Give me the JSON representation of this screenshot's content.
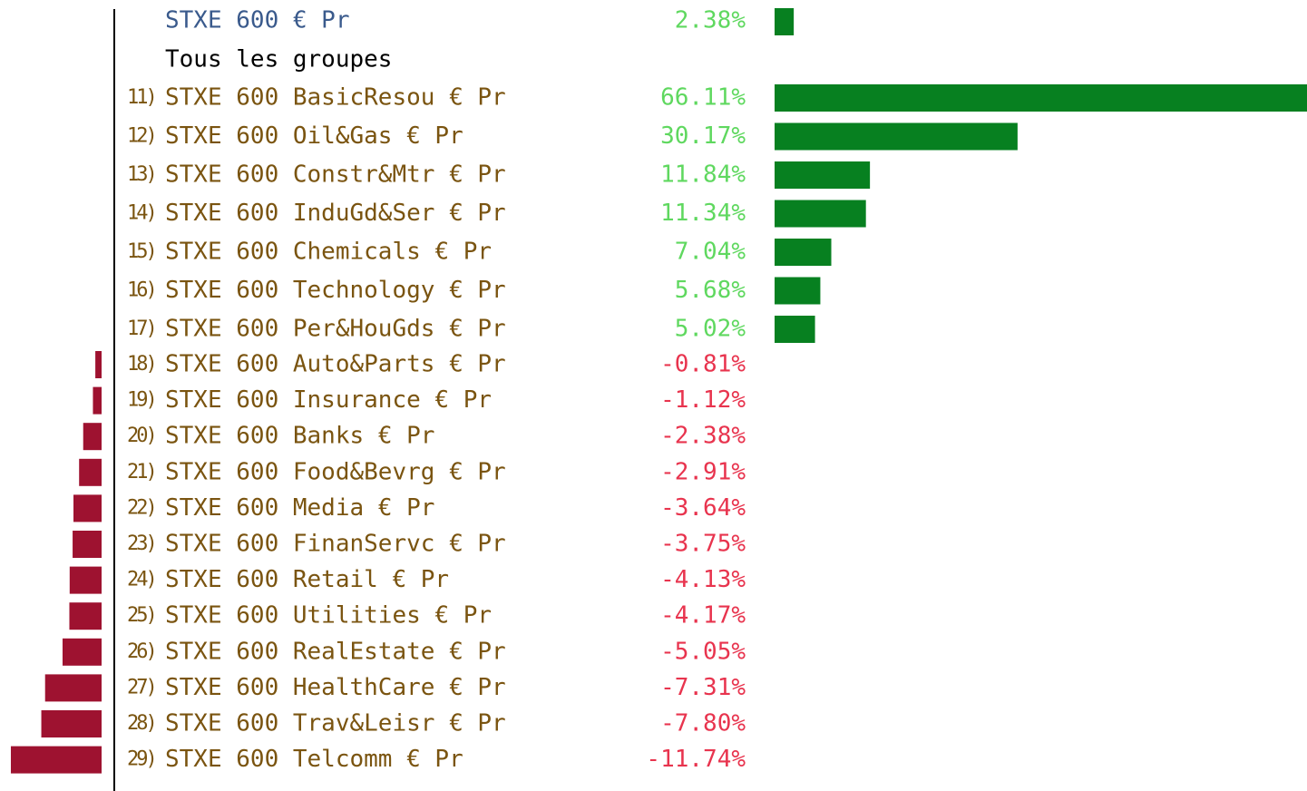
{
  "benchmark": {
    "name": "STXE 600 € Pr",
    "value": 2.38,
    "value_label": "2.38%"
  },
  "group_heading": "Tous les groupes",
  "rows": [
    {
      "number": "11)",
      "name": "STXE 600 BasicResou € Pr",
      "value": 66.11,
      "value_label": "66.11%"
    },
    {
      "number": "12)",
      "name": "STXE 600 Oil&Gas € Pr",
      "value": 30.17,
      "value_label": "30.17%"
    },
    {
      "number": "13)",
      "name": "STXE 600 Constr&Mtr € Pr",
      "value": 11.84,
      "value_label": "11.84%"
    },
    {
      "number": "14)",
      "name": "STXE 600 InduGd&Ser € Pr",
      "value": 11.34,
      "value_label": "11.34%"
    },
    {
      "number": "15)",
      "name": "STXE 600 Chemicals € Pr",
      "value": 7.04,
      "value_label": "7.04%"
    },
    {
      "number": "16)",
      "name": "STXE 600 Technology € Pr",
      "value": 5.68,
      "value_label": "5.68%"
    },
    {
      "number": "17)",
      "name": "STXE 600 Per&HouGds € Pr",
      "value": 5.02,
      "value_label": "5.02%"
    },
    {
      "number": "18)",
      "name": "STXE 600 Auto&Parts € Pr",
      "value": -0.81,
      "value_label": "-0.81%"
    },
    {
      "number": "19)",
      "name": "STXE 600 Insurance € Pr",
      "value": -1.12,
      "value_label": "-1.12%"
    },
    {
      "number": "20)",
      "name": "STXE 600 Banks € Pr",
      "value": -2.38,
      "value_label": "-2.38%"
    },
    {
      "number": "21)",
      "name": "STXE 600 Food&Bevrg € Pr",
      "value": -2.91,
      "value_label": "-2.91%"
    },
    {
      "number": "22)",
      "name": "STXE 600 Media € Pr",
      "value": -3.64,
      "value_label": "-3.64%"
    },
    {
      "number": "23)",
      "name": "STXE 600 FinanServc € Pr",
      "value": -3.75,
      "value_label": "-3.75%"
    },
    {
      "number": "24)",
      "name": "STXE 600 Retail € Pr",
      "value": -4.13,
      "value_label": "-4.13%"
    },
    {
      "number": "25)",
      "name": "STXE 600 Utilities € Pr",
      "value": -4.17,
      "value_label": "-4.17%"
    },
    {
      "number": "26)",
      "name": "STXE 600 RealEstate € Pr",
      "value": -5.05,
      "value_label": "-5.05%"
    },
    {
      "number": "27)",
      "name": "STXE 600 HealthCare € Pr",
      "value": -7.31,
      "value_label": "-7.31%"
    },
    {
      "number": "28)",
      "name": "STXE 600 Trav&Leisr € Pr",
      "value": -7.8,
      "value_label": "-7.80%"
    },
    {
      "number": "29)",
      "name": "STXE 600 Telcomm € Pr",
      "value": -11.74,
      "value_label": "-11.74%"
    }
  ]
}
